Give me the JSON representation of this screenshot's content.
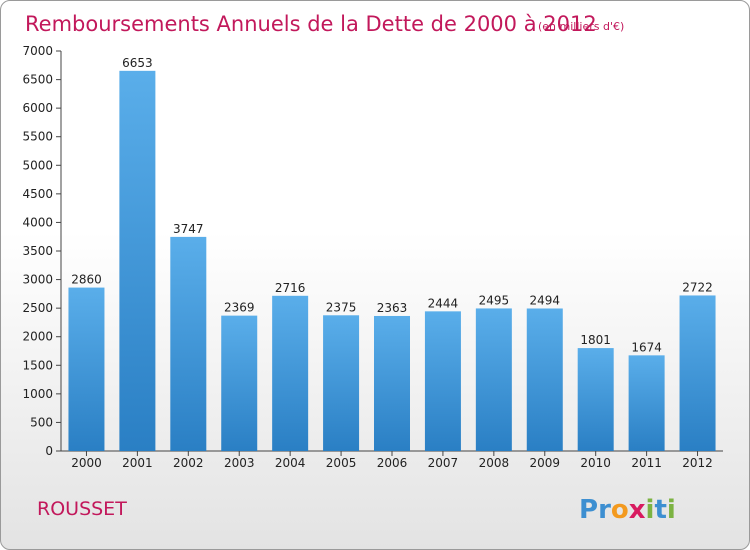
{
  "chart_data": {
    "type": "bar",
    "title": "Remboursements Annuels de la Dette de 2000 à 2012",
    "subtitle": "(en milliers d'€)",
    "categories": [
      "2000",
      "2001",
      "2002",
      "2003",
      "2004",
      "2005",
      "2006",
      "2007",
      "2008",
      "2009",
      "2010",
      "2011",
      "2012"
    ],
    "values": [
      2860,
      6653,
      3747,
      2369,
      2716,
      2375,
      2363,
      2444,
      2495,
      2494,
      1801,
      1674,
      2722
    ],
    "xlabel": "",
    "ylabel": "",
    "ylim": [
      0,
      7000
    ],
    "yticks": [
      0,
      500,
      1000,
      1500,
      2000,
      2500,
      3000,
      3500,
      4000,
      4500,
      5000,
      5500,
      6000,
      6500,
      7000
    ],
    "grid": false,
    "legend": "none",
    "bar_color_light": "#5aaeea",
    "bar_color_dark": "#2a7fc4"
  },
  "footer": {
    "commune": "ROUSSET",
    "logo_letters": [
      {
        "ch": "P",
        "color": "#3d8fd1"
      },
      {
        "ch": "r",
        "color": "#3d8fd1"
      },
      {
        "ch": "o",
        "color": "#f39a1f"
      },
      {
        "ch": "x",
        "color": "#d81b60"
      },
      {
        "ch": "i",
        "color": "#7cb342"
      },
      {
        "ch": "t",
        "color": "#3d8fd1"
      },
      {
        "ch": "i",
        "color": "#7cb342"
      }
    ]
  }
}
